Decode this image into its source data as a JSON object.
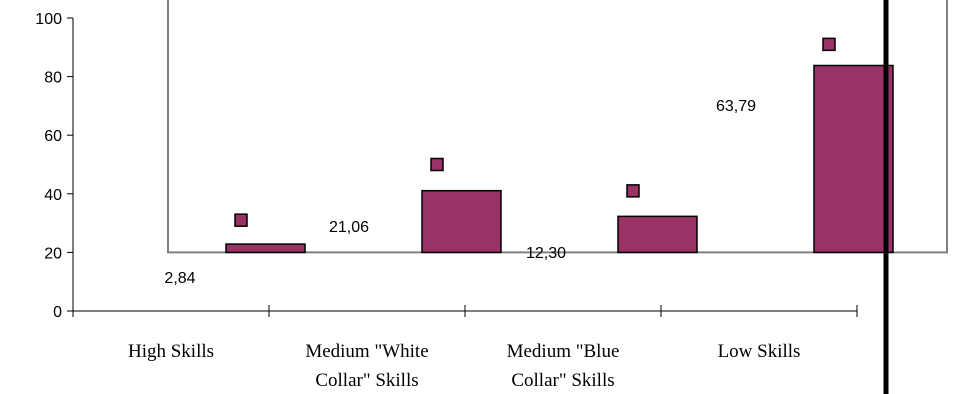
{
  "chart_data": {
    "type": "bar",
    "categories": [
      [
        "High Skills"
      ],
      [
        "Medium \"White",
        "Collar\" Skills"
      ],
      [
        "Medium \"Blue",
        "Collar\" Skills"
      ],
      [
        "Low Skills"
      ]
    ],
    "series": [
      {
        "values": [
          2.84,
          21.06,
          12.3,
          63.79
        ],
        "data_labels": [
          "2,84",
          "21,06",
          "12,30",
          "63,79"
        ],
        "bar_base": 20,
        "marker_values": [
          31,
          50,
          41,
          91
        ]
      }
    ],
    "ylim": [
      0,
      100
    ],
    "yticks": [
      0,
      20,
      40,
      60,
      80,
      100
    ],
    "title": "",
    "xlabel": "",
    "ylabel": "",
    "grid": false,
    "legend": "none",
    "colors": {
      "bar_fill": "#993366",
      "bar_stroke": "#000000",
      "marker_fill": "#993366",
      "plot_frame": "#808080",
      "axis": "#000000",
      "divider": "#000000"
    }
  }
}
